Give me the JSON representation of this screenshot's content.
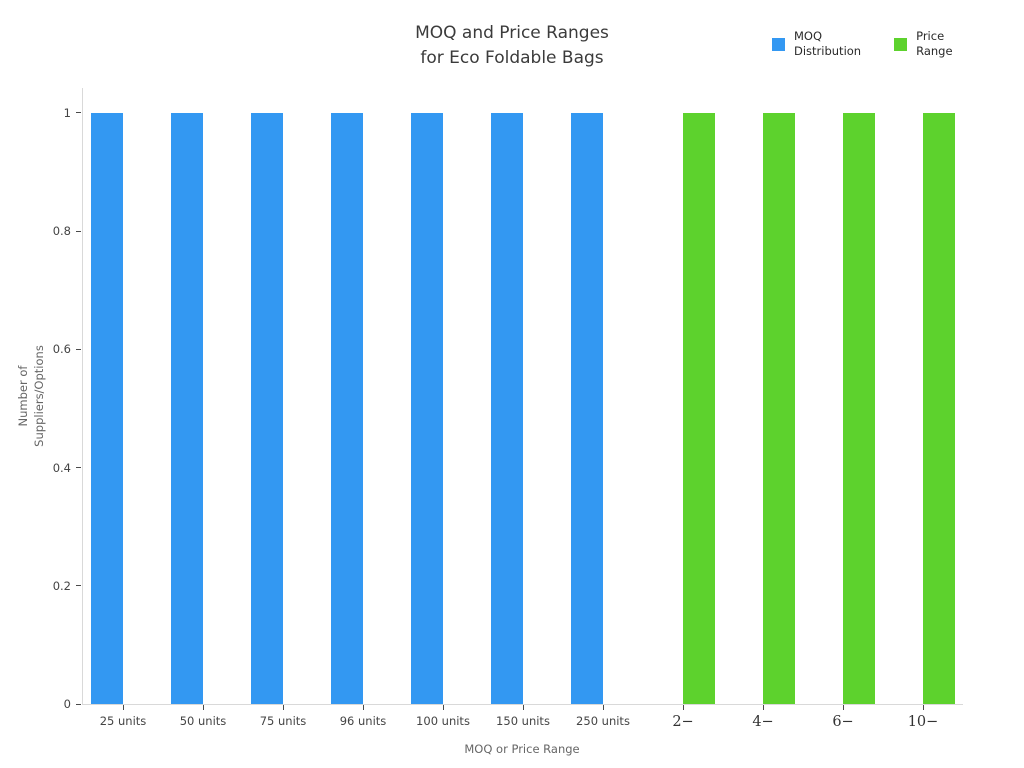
{
  "title": "MOQ and Price Ranges\nfor Eco Foldable Bags",
  "legend": [
    {
      "label": "MOQ\nDistribution",
      "color": "#3398F2"
    },
    {
      "label": "Price\nRange",
      "color": "#5DD22D"
    }
  ],
  "chart_data": {
    "type": "bar",
    "bar_mode": "grouped",
    "title": "MOQ and Price Ranges for Eco Foldable Bags",
    "xlabel": "MOQ or Price Range",
    "ylabel": "Number of\nSuppliers/Options",
    "categories": [
      "25 units",
      "50 units",
      "75 units",
      "96 units",
      "100 units",
      "150 units",
      "250 units",
      "2−",
      "4−",
      "6−",
      "10−"
    ],
    "series": [
      {
        "name": "MOQ Distribution",
        "color": "#3398F2",
        "values": [
          1,
          1,
          1,
          1,
          1,
          1,
          1,
          null,
          null,
          null,
          null
        ]
      },
      {
        "name": "Price Range",
        "color": "#5DD22D",
        "values": [
          null,
          null,
          null,
          null,
          null,
          null,
          null,
          1,
          1,
          1,
          1
        ]
      }
    ],
    "yticks": [
      0,
      0.2,
      0.4,
      0.6,
      0.8,
      1
    ],
    "ylim": [
      0,
      1.042
    ],
    "grid": false,
    "legend_position": "top-right"
  }
}
